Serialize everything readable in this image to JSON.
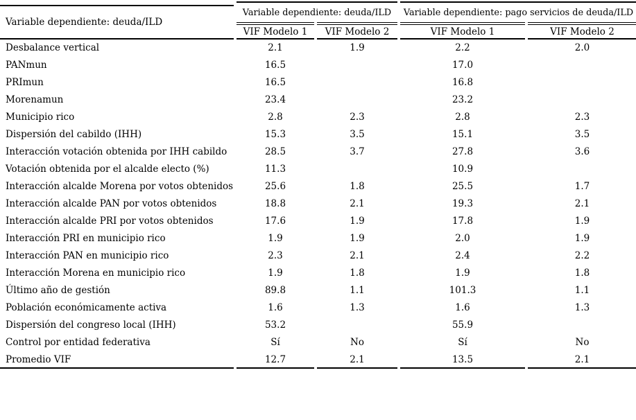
{
  "table": {
    "stub_header": "Variable dependiente: deuda/ILD",
    "group_headers": [
      "Variable dependiente: deuda/ILD",
      "Variable dependiente: pago servicios de deuda/ILD"
    ],
    "column_headers": [
      "VIF Modelo 1",
      "VIF Modelo 2",
      "VIF Modelo 1",
      "VIF Modelo 2"
    ],
    "rows": [
      {
        "label": "Desbalance vertical",
        "values": [
          "2.1",
          "1.9",
          "2.2",
          "2.0"
        ]
      },
      {
        "label": "PANmun",
        "values": [
          "16.5",
          "",
          "17.0",
          ""
        ]
      },
      {
        "label": "PRImun",
        "values": [
          "16.5",
          "",
          "16.8",
          ""
        ]
      },
      {
        "label": "Morenamun",
        "values": [
          "23.4",
          "",
          "23.2",
          ""
        ]
      },
      {
        "label": "Municipio rico",
        "values": [
          "2.8",
          "2.3",
          "2.8",
          "2.3"
        ]
      },
      {
        "label": "Dispersión del cabildo (IHH)",
        "values": [
          "15.3",
          "3.5",
          "15.1",
          "3.5"
        ]
      },
      {
        "label": "Interacción votación obtenida por IHH cabildo",
        "values": [
          "28.5",
          "3.7",
          "27.8",
          "3.6"
        ]
      },
      {
        "label": "Votación obtenida por el alcalde electo (%)",
        "values": [
          "11.3",
          "",
          "10.9",
          ""
        ]
      },
      {
        "label": "Interacción alcalde Morena por votos obtenidos",
        "values": [
          "25.6",
          "1.8",
          "25.5",
          "1.7"
        ]
      },
      {
        "label": "Interacción alcalde PAN por votos obtenidos",
        "values": [
          "18.8",
          "2.1",
          "19.3",
          "2.1"
        ]
      },
      {
        "label": "Interacción alcalde PRI por votos obtenidos",
        "values": [
          "17.6",
          "1.9",
          "17.8",
          "1.9"
        ]
      },
      {
        "label": "Interacción PRI en municipio rico",
        "values": [
          "1.9",
          "1.9",
          "2.0",
          "1.9"
        ]
      },
      {
        "label": "Interacción PAN en municipio rico",
        "values": [
          "2.3",
          "2.1",
          "2.4",
          "2.2"
        ]
      },
      {
        "label": "Interacción Morena en municipio rico",
        "values": [
          "1.9",
          "1.8",
          "1.9",
          "1.8"
        ]
      },
      {
        "label": "Último año de gestión",
        "values": [
          "89.8",
          "1.1",
          "101.3",
          "1.1"
        ]
      },
      {
        "label": "Población económicamente activa",
        "values": [
          "1.6",
          "1.3",
          "1.6",
          "1.3"
        ]
      },
      {
        "label": "Dispersión del congreso local (IHH)",
        "values": [
          "53.2",
          "",
          "55.9",
          ""
        ]
      },
      {
        "label": "Control por entidad federativa",
        "values": [
          "Sí",
          "No",
          "Sí",
          "No"
        ]
      },
      {
        "label": "Promedio VIF",
        "values": [
          "12.7",
          "2.1",
          "13.5",
          "2.1"
        ]
      }
    ]
  }
}
